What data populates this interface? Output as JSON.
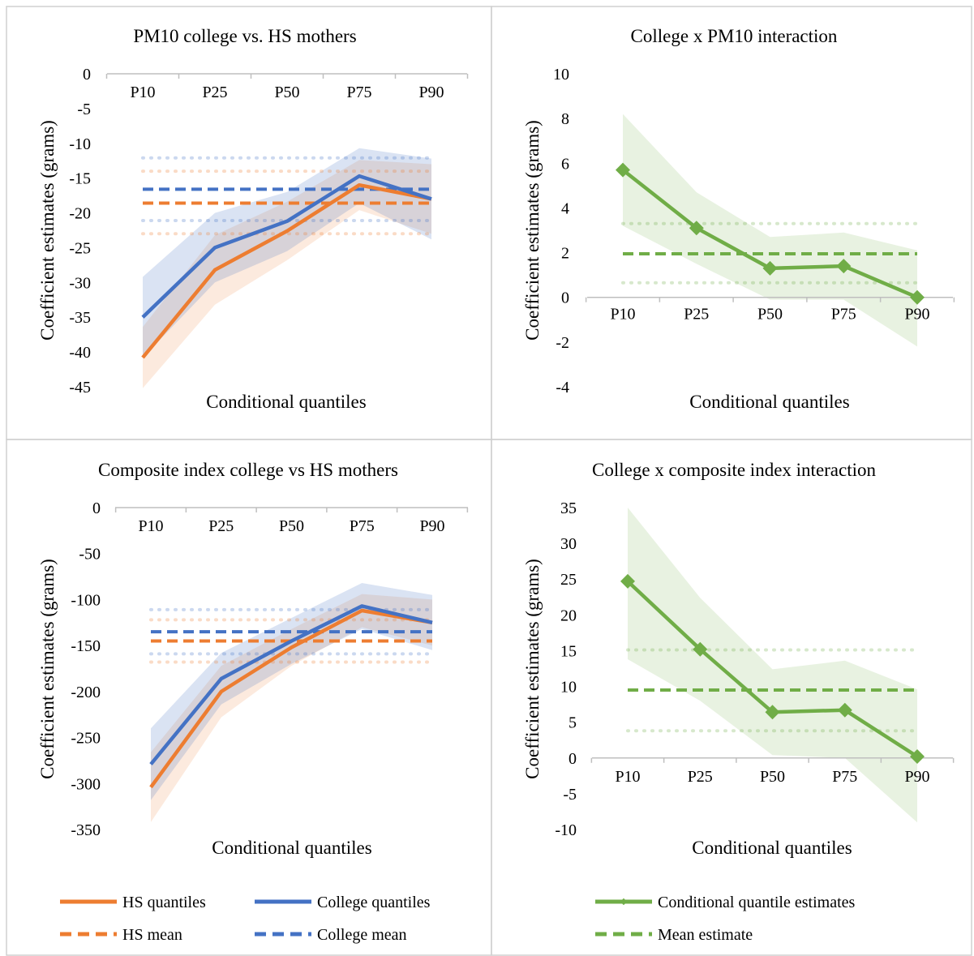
{
  "colors": {
    "hs": "#ED7D31",
    "college": "#4472C4",
    "green": "#70AD47",
    "frame": "#D0D0D0",
    "axis": "#BFBFBF"
  },
  "chart_data": [
    {
      "id": "pm10-college-vs-hs",
      "type": "line",
      "title": "PM10 college vs. HS mothers",
      "xlabel": "Conditional quantiles",
      "ylabel": "Coefficient estimates (grams)",
      "categories": [
        "P10",
        "P25",
        "P50",
        "P75",
        "P90"
      ],
      "ylim": [
        -45,
        0
      ],
      "ystep": 5,
      "yticks": [
        "-45",
        "-40",
        "-35",
        "-30",
        "-25",
        "-20",
        "-15",
        "-10",
        "-5",
        "0"
      ],
      "series": [
        {
          "key": "hs",
          "values": [
            -40.8,
            -28.2,
            -22.6,
            -16.0,
            -18.0
          ],
          "lower": [
            -45.2,
            -33.2,
            -26.8,
            -19.6,
            -23.0
          ],
          "upper": [
            -36.4,
            -23.2,
            -18.4,
            -12.4,
            -13.0
          ]
        },
        {
          "key": "college",
          "values": [
            -35.0,
            -25.0,
            -21.2,
            -14.7,
            -18.0
          ],
          "lower": [
            -40.8,
            -30.0,
            -25.5,
            -18.6,
            -23.8
          ],
          "upper": [
            -29.2,
            -20.0,
            -17.0,
            -10.7,
            -12.2
          ]
        }
      ],
      "means": [
        {
          "key": "hs",
          "value": -18.6,
          "lower": -23.0,
          "upper": -14.0
        },
        {
          "key": "college",
          "value": -16.6,
          "lower": -21.1,
          "upper": -12.1
        }
      ]
    },
    {
      "id": "college-x-pm10",
      "type": "line",
      "title": "College x PM10 interaction",
      "xlabel": "Conditional quantiles",
      "ylabel": "Coefficient estimates (grams)",
      "categories": [
        "P10",
        "P25",
        "P50",
        "P75",
        "P90"
      ],
      "ylim": [
        -4,
        10
      ],
      "ystep": 2,
      "yticks": [
        "-4",
        "-2",
        "0",
        "2",
        "4",
        "6",
        "8",
        "10"
      ],
      "series": [
        {
          "key": "green",
          "values": [
            5.7,
            3.1,
            1.3,
            1.4,
            0.0
          ],
          "lower": [
            3.2,
            1.5,
            -0.1,
            -0.1,
            -2.2
          ],
          "upper": [
            8.2,
            4.7,
            2.7,
            2.9,
            2.1
          ]
        }
      ],
      "means": [
        {
          "key": "green",
          "value": 1.95,
          "lower": 0.65,
          "upper": 3.3
        }
      ]
    },
    {
      "id": "composite-college-vs-hs",
      "type": "line",
      "title": "Composite index college vs HS mothers",
      "xlabel": "Conditional quantiles",
      "ylabel": "Coefficient estimates (grams)",
      "categories": [
        "P10",
        "P25",
        "P50",
        "P75",
        "P90"
      ],
      "ylim": [
        -350,
        0
      ],
      "ystep": 50,
      "yticks": [
        "-350",
        "-300",
        "-250",
        "-200",
        "-150",
        "-100",
        "-50",
        "0"
      ],
      "series": [
        {
          "key": "hs",
          "values": [
            -304,
            -200,
            -152,
            -112,
            -125
          ],
          "lower": [
            -342,
            -228,
            -172,
            -130,
            -150
          ],
          "upper": [
            -266,
            -172,
            -132,
            -94,
            -100
          ]
        },
        {
          "key": "college",
          "values": [
            -279,
            -186,
            -145,
            -107,
            -125
          ],
          "lower": [
            -318,
            -214,
            -170,
            -132,
            -155
          ],
          "upper": [
            -240,
            -158,
            -120,
            -82,
            -95
          ]
        }
      ],
      "means": [
        {
          "key": "hs",
          "value": -145,
          "lower": -168,
          "upper": -122
        },
        {
          "key": "college",
          "value": -135,
          "lower": -159,
          "upper": -111
        }
      ]
    },
    {
      "id": "college-x-composite",
      "type": "line",
      "title": "College x composite index interaction",
      "xlabel": "Conditional quantiles",
      "ylabel": "Coefficient estimates (grams)",
      "categories": [
        "P10",
        "P25",
        "P50",
        "P75",
        "P90"
      ],
      "ylim": [
        -10,
        35
      ],
      "ystep": 5,
      "yticks": [
        "-10",
        "-5",
        "0",
        "5",
        "10",
        "15",
        "20",
        "25",
        "30",
        "35"
      ],
      "series": [
        {
          "key": "green",
          "values": [
            24.7,
            15.2,
            6.4,
            6.7,
            0.2
          ],
          "lower": [
            13.8,
            8.0,
            0.4,
            0.0,
            -9.0
          ],
          "upper": [
            35.0,
            22.4,
            12.4,
            13.6,
            9.6
          ]
        }
      ],
      "means": [
        {
          "key": "green",
          "value": 9.5,
          "lower": 3.8,
          "upper": 15.1
        }
      ]
    }
  ],
  "legend_left": {
    "hs_quantiles": "HS quantiles",
    "college_quantiles": "College quantiles",
    "hs_mean": "HS mean",
    "college_mean": "College mean"
  },
  "legend_right": {
    "cq_estimates": "Conditional quantile estimates",
    "mean_estimate": "Mean estimate"
  }
}
